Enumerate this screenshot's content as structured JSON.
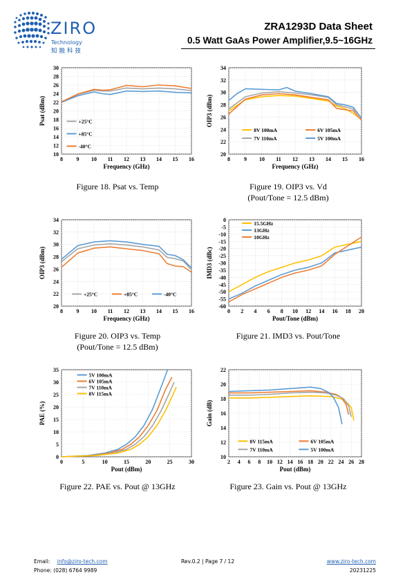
{
  "header": {
    "logo_text": "ZIRO",
    "logo_sub": "Technology",
    "logo_cn": "知融科技",
    "title": "ZRA1293D Data Sheet",
    "subtitle": "0.5 Watt GaAs Power Amplifier,9.5~16GHz",
    "brand_color": "#1f5fb0"
  },
  "captions": {
    "fig18": "Figure 18. Psat vs. Temp",
    "fig19_line1": "Figure 19. OIP3 vs. Vd",
    "fig19_line2": "(Pout/Tone = 12.5 dBm)",
    "fig20_line1": "Figure 20. OIP3 vs. Temp",
    "fig20_line2": "(Pout/Tone = 12.5 dBm)",
    "fig21": "Figure 21. IMD3 vs. Pout/Tone",
    "fig22": "Figure 22. PAE vs. Pout @ 13GHz",
    "fig23": "Figure 23. Gain vs. Pout @ 13GHz"
  },
  "footer": {
    "email_label": "Email:",
    "email": "info@ziro-tech.com",
    "phone": "Phone:  (028) 6764 9989",
    "rev_page": "Rev.0.2 | Page 7 / 12",
    "website": "www.ziro-tech.com",
    "date": "20231225"
  },
  "chart_data": [
    {
      "id": "fig18",
      "type": "line",
      "ylabel": "Psat (dBm)",
      "xlabel": "Frequency (GHz)",
      "xlim": [
        8,
        16
      ],
      "ylim": [
        10,
        30
      ],
      "xticks": [
        8,
        9,
        10,
        11,
        12,
        13,
        14,
        15,
        16
      ],
      "yticks": [
        10,
        12,
        14,
        16,
        18,
        20,
        22,
        24,
        26,
        28,
        30
      ],
      "grid": true,
      "legend_position": "bottom-left",
      "series": [
        {
          "name": "+25°C",
          "color": "#a5a5a5",
          "x": [
            8,
            9,
            10,
            10.5,
            11,
            12,
            13,
            14,
            15,
            16
          ],
          "y": [
            22.0,
            23.8,
            24.8,
            24.6,
            24.6,
            25.3,
            25.1,
            25.3,
            25.1,
            24.7
          ]
        },
        {
          "name": "+85°C",
          "color": "#5b9bd5",
          "x": [
            8,
            9,
            10,
            10.5,
            11,
            12,
            13,
            14,
            15,
            16
          ],
          "y": [
            22.0,
            23.5,
            24.4,
            24.0,
            23.8,
            24.6,
            24.5,
            24.6,
            24.3,
            24.2
          ]
        },
        {
          "name": "-40°C",
          "color": "#ed7d31",
          "x": [
            8,
            9,
            10,
            10.5,
            11,
            12,
            13,
            14,
            15,
            16
          ],
          "y": [
            22.1,
            23.9,
            25.0,
            24.8,
            24.9,
            25.9,
            25.6,
            26.0,
            25.8,
            25.2
          ]
        }
      ]
    },
    {
      "id": "fig19",
      "type": "line",
      "ylabel": "OIP3 (dBm)",
      "xlabel": "Frequency (GHz)",
      "xlim": [
        8,
        16
      ],
      "ylim": [
        20,
        34
      ],
      "xticks": [
        8,
        9,
        10,
        11,
        12,
        13,
        14,
        15,
        16
      ],
      "yticks": [
        20,
        22,
        24,
        26,
        28,
        30,
        32,
        34
      ],
      "grid": true,
      "legend_position": "bottom",
      "series": [
        {
          "name": "8V 100mA",
          "color": "#ffc000",
          "x": [
            8,
            9,
            10,
            11,
            12,
            13,
            14,
            14.5,
            15,
            15.5,
            16
          ],
          "y": [
            27.0,
            28.8,
            29.3,
            29.5,
            29.4,
            29.0,
            28.6,
            27.8,
            27.4,
            26.6,
            25.6
          ]
        },
        {
          "name": "6V 105mA",
          "color": "#ed7d31",
          "x": [
            8,
            9,
            10,
            11,
            12,
            13,
            14,
            14.5,
            15,
            15.5,
            16
          ],
          "y": [
            26.5,
            28.9,
            29.6,
            29.8,
            29.6,
            29.2,
            28.8,
            27.4,
            27.2,
            27.0,
            25.5
          ]
        },
        {
          "name": "7V 110mA",
          "color": "#a5a5a5",
          "x": [
            8,
            9,
            10,
            11,
            12,
            13,
            14,
            14.5,
            15,
            15.5,
            16
          ],
          "y": [
            27.3,
            29.3,
            29.9,
            30.1,
            29.9,
            29.6,
            29.2,
            28.0,
            27.7,
            27.3,
            25.9
          ]
        },
        {
          "name": "5V 100mA",
          "color": "#5b9bd5",
          "x": [
            8,
            8.5,
            9,
            10,
            11,
            11.5,
            12,
            13,
            14,
            14.5,
            15,
            15.5,
            16
          ],
          "y": [
            28.7,
            29.8,
            30.6,
            30.5,
            30.4,
            30.8,
            30.2,
            29.8,
            29.3,
            28.2,
            28.0,
            27.6,
            25.8
          ]
        }
      ]
    },
    {
      "id": "fig20",
      "type": "line",
      "ylabel": "OIP3 (dBm)",
      "xlabel": "Frequency (GHz)",
      "xlim": [
        8,
        16
      ],
      "ylim": [
        20,
        34
      ],
      "xticks": [
        8,
        9,
        10,
        11,
        12,
        13,
        14,
        15,
        16
      ],
      "yticks": [
        20,
        22,
        24,
        26,
        28,
        30,
        32,
        34
      ],
      "grid": true,
      "legend_position": "bottom",
      "series": [
        {
          "name": "+25°C",
          "color": "#a5a5a5",
          "x": [
            8,
            9,
            10,
            11,
            12,
            13,
            14,
            14.5,
            15,
            15.5,
            16
          ],
          "y": [
            27.2,
            29.3,
            29.9,
            30.1,
            29.9,
            29.6,
            29.1,
            27.9,
            27.7,
            27.3,
            25.9
          ]
        },
        {
          "name": "+85°C",
          "color": "#ed7d31",
          "x": [
            8,
            9,
            10,
            11,
            12,
            13,
            14,
            14.5,
            15,
            15.5,
            16
          ],
          "y": [
            26.3,
            28.6,
            29.4,
            29.6,
            29.3,
            29.0,
            28.5,
            26.9,
            26.5,
            26.4,
            25.5
          ]
        },
        {
          "name": "-40°C",
          "color": "#5b9bd5",
          "x": [
            8,
            9,
            10,
            11,
            11.5,
            12,
            13,
            14,
            14.5,
            15,
            15.5,
            16
          ],
          "y": [
            27.6,
            29.8,
            30.4,
            30.6,
            30.5,
            30.4,
            30.0,
            29.7,
            28.4,
            28.2,
            27.5,
            26.2
          ]
        }
      ]
    },
    {
      "id": "fig21",
      "type": "line",
      "ylabel": "IMD3 (dBc)",
      "xlabel": "Pout/Tone (dBm)",
      "xlim": [
        0,
        20
      ],
      "ylim": [
        -60,
        0
      ],
      "xticks": [
        0,
        2,
        4,
        6,
        8,
        10,
        12,
        14,
        16,
        18,
        20
      ],
      "yticks": [
        0,
        -5,
        -10,
        -15,
        -20,
        -25,
        -30,
        -35,
        -40,
        -45,
        -50,
        -55,
        -60
      ],
      "grid": true,
      "legend_position": "top-left",
      "series": [
        {
          "name": "15.5GHz",
          "color": "#ffc000",
          "x": [
            0,
            2,
            4,
            6,
            8,
            10,
            12,
            14,
            16,
            18,
            20
          ],
          "y": [
            -50,
            -45,
            -40,
            -36,
            -33,
            -30,
            -28,
            -25,
            -19,
            -17,
            -15
          ]
        },
        {
          "name": "13GHz",
          "color": "#5b9bd5",
          "x": [
            0,
            2,
            4,
            6,
            8,
            10,
            12,
            14,
            16,
            18,
            20
          ],
          "y": [
            -55,
            -51,
            -46,
            -42,
            -38,
            -35,
            -33,
            -30,
            -23,
            -21,
            -19
          ]
        },
        {
          "name": "10GHz",
          "color": "#ed7d31",
          "x": [
            0,
            2,
            4,
            6,
            8,
            10,
            12,
            14,
            16,
            18,
            20
          ],
          "y": [
            -57,
            -52,
            -48,
            -44,
            -40,
            -37,
            -35,
            -32,
            -24,
            -18,
            -12
          ]
        }
      ]
    },
    {
      "id": "fig22",
      "type": "line",
      "ylabel": "PAE (%)",
      "xlabel": "Pout (dBm)",
      "xlim": [
        0,
        30
      ],
      "ylim": [
        0,
        35
      ],
      "xticks": [
        0,
        5,
        10,
        15,
        20,
        25,
        30
      ],
      "yticks": [
        0,
        5,
        10,
        15,
        20,
        25,
        30,
        35
      ],
      "grid": true,
      "legend_position": "top-left",
      "series": [
        {
          "name": "5V 100mA",
          "color": "#5b9bd5",
          "x": [
            0,
            6,
            10,
            13,
            15,
            17,
            19,
            21,
            23,
            24.5
          ],
          "y": [
            0,
            0.5,
            1.5,
            3,
            5,
            8,
            12.5,
            19,
            28,
            35
          ]
        },
        {
          "name": "6V 105mA",
          "color": "#ed7d31",
          "x": [
            0,
            7,
            11,
            14,
            16,
            18,
            20,
            22,
            24,
            25.5
          ],
          "y": [
            0,
            0.5,
            1.5,
            3,
            5,
            8,
            12.5,
            18.5,
            27,
            32
          ]
        },
        {
          "name": "7V 110mA",
          "color": "#a5a5a5",
          "x": [
            0,
            7.5,
            12,
            15,
            17,
            19,
            21,
            23,
            25,
            26
          ],
          "y": [
            0,
            0.5,
            1.5,
            3,
            5,
            8,
            12.5,
            18.5,
            26,
            30
          ]
        },
        {
          "name": "8V 115mA",
          "color": "#ffc000",
          "x": [
            0,
            8,
            13,
            16,
            18,
            20,
            22,
            24,
            26,
            26.5
          ],
          "y": [
            0,
            0.5,
            1.5,
            3,
            5,
            8,
            12.5,
            18.5,
            26,
            28
          ]
        }
      ]
    },
    {
      "id": "fig23",
      "type": "line",
      "ylabel": "Gain (dB)",
      "xlabel": "Pout (dBm)",
      "xlim": [
        2,
        28
      ],
      "ylim": [
        10,
        22
      ],
      "xticks": [
        2,
        4,
        6,
        8,
        10,
        12,
        14,
        16,
        18,
        20,
        22,
        24,
        26,
        28
      ],
      "yticks": [
        10,
        12,
        14,
        16,
        18,
        20,
        22
      ],
      "grid": true,
      "legend_position": "bottom",
      "series": [
        {
          "name": "8V 115mA",
          "color": "#ffc000",
          "x": [
            2,
            6,
            10,
            14,
            18,
            22,
            24,
            25,
            26,
            26.5
          ],
          "y": [
            18.1,
            18.1,
            18.2,
            18.3,
            18.4,
            18.3,
            18.0,
            17.6,
            16.8,
            15.0
          ]
        },
        {
          "name": "6V 105mA",
          "color": "#ed7d31",
          "x": [
            2,
            6,
            10,
            14,
            18,
            21,
            23,
            24,
            25,
            25.5
          ],
          "y": [
            18.8,
            18.8,
            18.9,
            19.0,
            19.1,
            18.9,
            18.6,
            18.2,
            17.2,
            15.8
          ]
        },
        {
          "name": "7V 110mA",
          "color": "#a5a5a5",
          "x": [
            2,
            6,
            10,
            14,
            18,
            21,
            23,
            24.5,
            25.5,
            26
          ],
          "y": [
            18.5,
            18.5,
            18.6,
            18.8,
            18.9,
            18.8,
            18.5,
            18.0,
            17.0,
            15.5
          ]
        },
        {
          "name": "5V 100mA",
          "color": "#5b9bd5",
          "x": [
            2,
            6,
            10,
            14,
            18,
            20,
            21.5,
            22.5,
            23.5,
            24.2
          ],
          "y": [
            19.0,
            19.1,
            19.2,
            19.4,
            19.6,
            19.4,
            18.9,
            18.2,
            16.8,
            14.5
          ]
        }
      ]
    }
  ]
}
